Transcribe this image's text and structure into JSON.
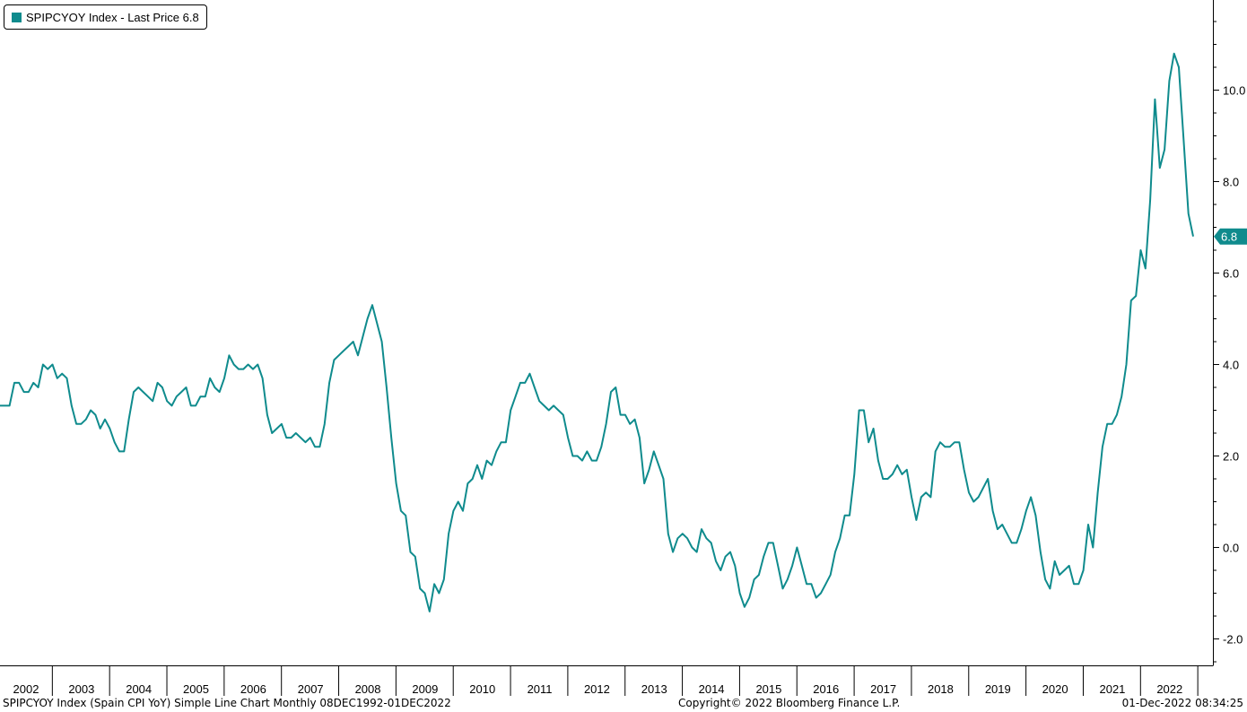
{
  "legend": {
    "label": "SPIPCYOY Index - Last Price 6.8",
    "color": "#0f8b8d"
  },
  "footer": {
    "left": "SPIPCYOY Index (Spain CPI YoY) Simple Line Chart  Monthly 08DEC1992-01DEC2022",
    "center": "Copyright© 2022 Bloomberg Finance L.P.",
    "right": "01-Dec-2022 08:34:25"
  },
  "chart_data": {
    "type": "line",
    "series": [
      {
        "name": "SPIPCYOY Index - Last Price",
        "color": "#0f8b8d",
        "start": "2002-01",
        "frequency": "monthly",
        "values": [
          3.1,
          3.1,
          3.1,
          3.6,
          3.6,
          3.4,
          3.4,
          3.6,
          3.5,
          4.0,
          3.9,
          4.0,
          3.7,
          3.8,
          3.7,
          3.1,
          2.7,
          2.7,
          2.8,
          3.0,
          2.9,
          2.6,
          2.8,
          2.6,
          2.3,
          2.1,
          2.1,
          2.8,
          3.4,
          3.5,
          3.4,
          3.3,
          3.2,
          3.6,
          3.5,
          3.2,
          3.1,
          3.3,
          3.4,
          3.5,
          3.1,
          3.1,
          3.3,
          3.3,
          3.7,
          3.5,
          3.4,
          3.7,
          4.2,
          4.0,
          3.9,
          3.9,
          4.0,
          3.9,
          4.0,
          3.7,
          2.9,
          2.5,
          2.6,
          2.7,
          2.4,
          2.4,
          2.5,
          2.4,
          2.3,
          2.4,
          2.2,
          2.2,
          2.7,
          3.6,
          4.1,
          4.2,
          4.3,
          4.4,
          4.5,
          4.2,
          4.6,
          5.0,
          5.3,
          4.9,
          4.5,
          3.5,
          2.4,
          1.4,
          0.8,
          0.7,
          -0.1,
          -0.2,
          -0.9,
          -1.0,
          -1.4,
          -0.8,
          -1.0,
          -0.7,
          0.3,
          0.8,
          1.0,
          0.8,
          1.4,
          1.5,
          1.8,
          1.5,
          1.9,
          1.8,
          2.1,
          2.3,
          2.3,
          3.0,
          3.3,
          3.6,
          3.6,
          3.8,
          3.5,
          3.2,
          3.1,
          3.0,
          3.1,
          3.0,
          2.9,
          2.4,
          2.0,
          2.0,
          1.9,
          2.1,
          1.9,
          1.9,
          2.2,
          2.7,
          3.4,
          3.5,
          2.9,
          2.9,
          2.7,
          2.8,
          2.4,
          1.4,
          1.7,
          2.1,
          1.8,
          1.5,
          0.3,
          -0.1,
          0.2,
          0.3,
          0.2,
          0.0,
          -0.1,
          0.4,
          0.2,
          0.1,
          -0.3,
          -0.5,
          -0.2,
          -0.1,
          -0.4,
          -1.0,
          -1.3,
          -1.1,
          -0.7,
          -0.6,
          -0.2,
          0.1,
          0.1,
          -0.4,
          -0.9,
          -0.7,
          -0.4,
          0.0,
          -0.4,
          -0.8,
          -0.8,
          -1.1,
          -1.0,
          -0.8,
          -0.6,
          -0.1,
          0.2,
          0.7,
          0.7,
          1.6,
          3.0,
          3.0,
          2.3,
          2.6,
          1.9,
          1.5,
          1.5,
          1.6,
          1.8,
          1.6,
          1.7,
          1.1,
          0.6,
          1.1,
          1.2,
          1.1,
          2.1,
          2.3,
          2.2,
          2.2,
          2.3,
          2.3,
          1.7,
          1.2,
          1.0,
          1.1,
          1.3,
          1.5,
          0.8,
          0.4,
          0.5,
          0.3,
          0.1,
          0.1,
          0.4,
          0.8,
          1.1,
          0.7,
          -0.1,
          -0.7,
          -0.9,
          -0.3,
          -0.6,
          -0.5,
          -0.4,
          -0.8,
          -0.8,
          -0.5,
          0.5,
          0.0,
          1.2,
          2.2,
          2.7,
          2.7,
          2.9,
          3.3,
          4.0,
          5.4,
          5.5,
          6.5,
          6.1,
          7.6,
          9.8,
          8.3,
          8.7,
          10.2,
          10.8,
          10.5,
          8.9,
          7.3,
          6.8
        ]
      }
    ],
    "x_tick_labels": [
      "2002",
      "2003",
      "2004",
      "2005",
      "2006",
      "2007",
      "2008",
      "2009",
      "2010",
      "2011",
      "2012",
      "2013",
      "2014",
      "2015",
      "2016",
      "2017",
      "2018",
      "2019",
      "2020",
      "2021",
      "2022"
    ],
    "y_ticks": [
      -2.0,
      0.0,
      2.0,
      4.0,
      6.0,
      8.0,
      10.0
    ],
    "y_tick_labels": [
      "-2.0",
      "0.0",
      "2.0",
      "4.0",
      "6.0",
      "8.0",
      "10.0"
    ],
    "ylim": [
      -2.6,
      11.8
    ],
    "last_value_label": "6.8",
    "grid": false,
    "legend_position": "top-left",
    "y_axis_position": "right"
  }
}
